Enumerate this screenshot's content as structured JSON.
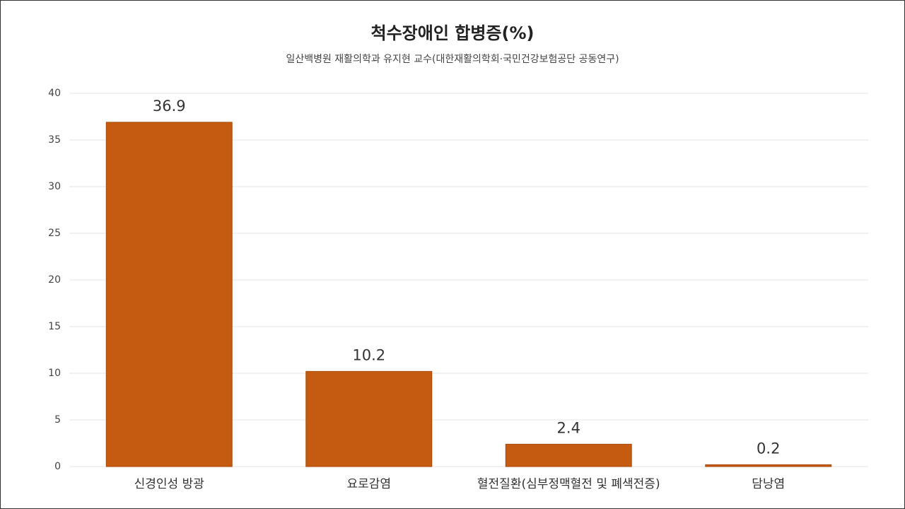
{
  "chart_data": {
    "type": "bar",
    "title": "척수장애인 합병증(%)",
    "subtitle": "일산백병원  재활의학과 유지현 교수(대한재활의학회·국민건강보험공단 공동연구)",
    "categories": [
      "신경인성 방광",
      "요로감염",
      "혈전질환(심부정맥혈전 및 폐색전증)",
      "담낭염"
    ],
    "values": [
      36.9,
      10.2,
      2.4,
      0.2
    ],
    "color": "#c55a11",
    "ylim": [
      0,
      40
    ],
    "yticks": [
      0,
      5,
      10,
      15,
      20,
      25,
      30,
      35,
      40
    ],
    "grid": true
  }
}
